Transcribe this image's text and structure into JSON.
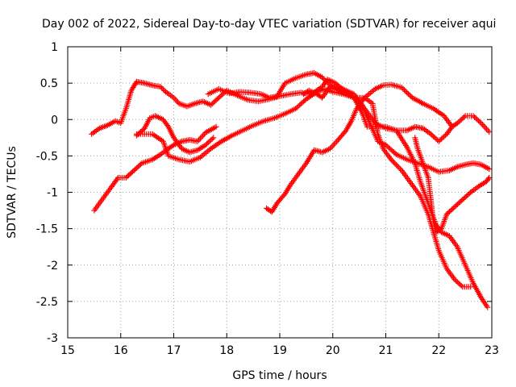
{
  "chart_data": {
    "type": "scatter",
    "title": "Day 002 of 2022, Sidereal Day-to-day VTEC variation (SDTVAR) for receiver aqui",
    "xlabel": "GPS time / hours",
    "ylabel": "SDTVAR / TECUs",
    "xlim": [
      15,
      23
    ],
    "ylim": [
      -3,
      1
    ],
    "xticks": [
      15,
      16,
      17,
      18,
      19,
      20,
      21,
      22,
      23
    ],
    "xtick_labels": [
      "15",
      "16",
      "17",
      "18",
      "19",
      "20",
      "21",
      "22",
      "23"
    ],
    "yticks": [
      1,
      0.5,
      0,
      -0.5,
      -1,
      -1.5,
      -2,
      -2.5,
      -3
    ],
    "ytick_labels": [
      "1",
      "0.5",
      "0",
      "-0.5",
      "-1",
      "-1.5",
      "-2",
      "-2.5",
      "-3"
    ],
    "grid": true,
    "marker": "+",
    "color": "#ff0000",
    "series": [
      {
        "name": "track-1",
        "points": [
          [
            15.45,
            -0.2
          ],
          [
            15.6,
            -0.12
          ],
          [
            15.75,
            -0.08
          ],
          [
            15.9,
            -0.02
          ],
          [
            16.0,
            -0.05
          ],
          [
            16.1,
            0.15
          ],
          [
            16.2,
            0.4
          ],
          [
            16.3,
            0.52
          ],
          [
            16.45,
            0.5
          ],
          [
            16.6,
            0.47
          ],
          [
            16.75,
            0.45
          ],
          [
            16.85,
            0.38
          ],
          [
            17.0,
            0.3
          ],
          [
            17.1,
            0.22
          ],
          [
            17.25,
            0.18
          ],
          [
            17.4,
            0.22
          ],
          [
            17.55,
            0.25
          ],
          [
            17.7,
            0.2
          ],
          [
            17.85,
            0.3
          ],
          [
            18.0,
            0.4
          ],
          [
            18.2,
            0.33
          ],
          [
            18.4,
            0.27
          ],
          [
            18.6,
            0.25
          ],
          [
            18.8,
            0.28
          ],
          [
            19.0,
            0.32
          ],
          [
            19.2,
            0.35
          ],
          [
            19.4,
            0.37
          ],
          [
            19.6,
            0.35
          ],
          [
            19.8,
            0.45
          ],
          [
            19.9,
            0.55
          ],
          [
            20.05,
            0.5
          ],
          [
            20.2,
            0.4
          ],
          [
            20.4,
            0.3
          ],
          [
            20.6,
            0.3
          ],
          [
            20.8,
            0.42
          ],
          [
            20.95,
            0.47
          ],
          [
            21.1,
            0.48
          ],
          [
            21.3,
            0.44
          ],
          [
            21.5,
            0.3
          ],
          [
            21.7,
            0.22
          ],
          [
            21.9,
            0.15
          ],
          [
            22.1,
            0.05
          ],
          [
            22.25,
            -0.1
          ],
          [
            22.35,
            -0.05
          ],
          [
            22.5,
            0.05
          ],
          [
            22.65,
            0.05
          ],
          [
            22.8,
            -0.05
          ],
          [
            22.95,
            -0.17
          ]
        ]
      },
      {
        "name": "track-2",
        "points": [
          [
            15.5,
            -1.25
          ],
          [
            15.7,
            -1.05
          ],
          [
            15.85,
            -0.9
          ],
          [
            15.95,
            -0.8
          ],
          [
            16.1,
            -0.8
          ],
          [
            16.25,
            -0.7
          ],
          [
            16.4,
            -0.6
          ],
          [
            16.6,
            -0.55
          ],
          [
            16.75,
            -0.48
          ],
          [
            16.9,
            -0.4
          ],
          [
            17.0,
            -0.35
          ],
          [
            17.15,
            -0.3
          ],
          [
            17.3,
            -0.28
          ],
          [
            17.45,
            -0.3
          ],
          [
            17.6,
            -0.18
          ],
          [
            17.8,
            -0.1
          ]
        ]
      },
      {
        "name": "track-3",
        "points": [
          [
            16.3,
            -0.22
          ],
          [
            16.45,
            -0.12
          ],
          [
            16.55,
            0.02
          ],
          [
            16.65,
            0.05
          ],
          [
            16.8,
            0.0
          ],
          [
            16.9,
            -0.1
          ],
          [
            17.0,
            -0.25
          ],
          [
            17.15,
            -0.4
          ],
          [
            17.3,
            -0.45
          ],
          [
            17.45,
            -0.42
          ],
          [
            17.6,
            -0.35
          ],
          [
            17.75,
            -0.25
          ]
        ]
      },
      {
        "name": "track-4",
        "points": [
          [
            16.3,
            -0.2
          ],
          [
            16.6,
            -0.2
          ],
          [
            16.8,
            -0.3
          ],
          [
            16.9,
            -0.5
          ],
          [
            17.1,
            -0.55
          ],
          [
            17.3,
            -0.58
          ],
          [
            17.5,
            -0.52
          ],
          [
            17.7,
            -0.4
          ],
          [
            17.9,
            -0.3
          ],
          [
            18.1,
            -0.22
          ],
          [
            18.3,
            -0.15
          ],
          [
            18.5,
            -0.08
          ],
          [
            18.7,
            -0.02
          ],
          [
            18.9,
            0.02
          ],
          [
            19.1,
            0.08
          ],
          [
            19.3,
            0.15
          ],
          [
            19.5,
            0.28
          ],
          [
            19.7,
            0.38
          ],
          [
            19.85,
            0.42
          ],
          [
            20.0,
            0.38
          ],
          [
            20.2,
            0.35
          ],
          [
            20.4,
            0.3
          ],
          [
            20.55,
            0.1
          ],
          [
            20.65,
            -0.1
          ],
          [
            20.8,
            -0.1
          ],
          [
            21.0,
            -0.1
          ],
          [
            21.2,
            -0.15
          ],
          [
            21.4,
            -0.15
          ],
          [
            21.55,
            -0.1
          ],
          [
            21.7,
            -0.12
          ],
          [
            21.85,
            -0.2
          ],
          [
            22.0,
            -0.3
          ],
          [
            22.15,
            -0.2
          ],
          [
            22.25,
            -0.1
          ]
        ]
      },
      {
        "name": "track-5",
        "points": [
          [
            17.65,
            0.35
          ],
          [
            17.85,
            0.42
          ],
          [
            18.05,
            0.36
          ],
          [
            18.25,
            0.38
          ],
          [
            18.45,
            0.37
          ],
          [
            18.65,
            0.35
          ],
          [
            18.8,
            0.3
          ],
          [
            18.95,
            0.32
          ],
          [
            19.1,
            0.5
          ],
          [
            19.3,
            0.57
          ],
          [
            19.5,
            0.62
          ],
          [
            19.65,
            0.64
          ],
          [
            19.8,
            0.58
          ],
          [
            19.95,
            0.47
          ],
          [
            20.15,
            0.38
          ],
          [
            20.35,
            0.33
          ],
          [
            20.55,
            0.2
          ],
          [
            20.7,
            -0.05
          ],
          [
            20.85,
            -0.3
          ],
          [
            21.0,
            -0.35
          ],
          [
            21.2,
            -0.48
          ],
          [
            21.4,
            -0.55
          ],
          [
            21.6,
            -0.6
          ],
          [
            21.8,
            -0.65
          ],
          [
            22.0,
            -0.72
          ],
          [
            22.2,
            -0.7
          ],
          [
            22.35,
            -0.65
          ],
          [
            22.5,
            -0.62
          ],
          [
            22.65,
            -0.6
          ],
          [
            22.8,
            -0.62
          ],
          [
            22.95,
            -0.68
          ]
        ]
      },
      {
        "name": "track-6",
        "points": [
          [
            18.75,
            -1.22
          ],
          [
            18.85,
            -1.27
          ],
          [
            18.95,
            -1.15
          ],
          [
            19.1,
            -1.02
          ],
          [
            19.2,
            -0.9
          ],
          [
            19.35,
            -0.75
          ],
          [
            19.5,
            -0.6
          ],
          [
            19.65,
            -0.42
          ],
          [
            19.8,
            -0.45
          ],
          [
            19.95,
            -0.4
          ],
          [
            20.1,
            -0.28
          ],
          [
            20.25,
            -0.15
          ],
          [
            20.35,
            -0.02
          ],
          [
            20.45,
            0.15
          ],
          [
            20.6,
            0.3
          ],
          [
            20.75,
            0.22
          ],
          [
            20.85,
            -0.2
          ],
          [
            20.95,
            -0.4
          ],
          [
            21.1,
            -0.55
          ],
          [
            21.3,
            -0.7
          ],
          [
            21.5,
            -0.9
          ],
          [
            21.65,
            -1.05
          ],
          [
            21.8,
            -1.3
          ],
          [
            21.9,
            -1.55
          ],
          [
            22.0,
            -1.8
          ],
          [
            22.15,
            -2.05
          ],
          [
            22.3,
            -2.2
          ],
          [
            22.45,
            -2.3
          ],
          [
            22.6,
            -2.3
          ]
        ]
      },
      {
        "name": "track-7",
        "points": [
          [
            19.45,
            0.35
          ],
          [
            19.55,
            0.4
          ],
          [
            19.7,
            0.35
          ],
          [
            19.8,
            0.3
          ],
          [
            19.95,
            0.45
          ],
          [
            20.1,
            0.45
          ],
          [
            20.25,
            0.4
          ],
          [
            20.4,
            0.35
          ],
          [
            20.6,
            0.15
          ],
          [
            20.8,
            -0.05
          ],
          [
            21.0,
            -0.12
          ],
          [
            21.2,
            -0.15
          ],
          [
            21.4,
            -0.38
          ],
          [
            21.55,
            -0.6
          ],
          [
            21.65,
            -0.85
          ],
          [
            21.75,
            -1.05
          ],
          [
            21.85,
            -1.25
          ],
          [
            21.95,
            -1.45
          ],
          [
            22.05,
            -1.55
          ],
          [
            22.2,
            -1.6
          ],
          [
            22.35,
            -1.75
          ],
          [
            22.5,
            -2.0
          ],
          [
            22.65,
            -2.25
          ],
          [
            22.8,
            -2.45
          ],
          [
            22.92,
            -2.58
          ]
        ]
      },
      {
        "name": "track-8",
        "points": [
          [
            21.55,
            -0.25
          ],
          [
            21.6,
            -0.4
          ],
          [
            21.7,
            -0.6
          ],
          [
            21.8,
            -0.8
          ],
          [
            21.85,
            -1.1
          ],
          [
            21.88,
            -1.3
          ],
          [
            21.9,
            -1.4
          ],
          [
            21.95,
            -1.55
          ],
          [
            22.05,
            -1.5
          ],
          [
            22.15,
            -1.3
          ],
          [
            22.3,
            -1.2
          ],
          [
            22.45,
            -1.1
          ],
          [
            22.6,
            -1.0
          ],
          [
            22.75,
            -0.92
          ],
          [
            22.9,
            -0.85
          ],
          [
            22.95,
            -0.8
          ]
        ]
      }
    ]
  }
}
